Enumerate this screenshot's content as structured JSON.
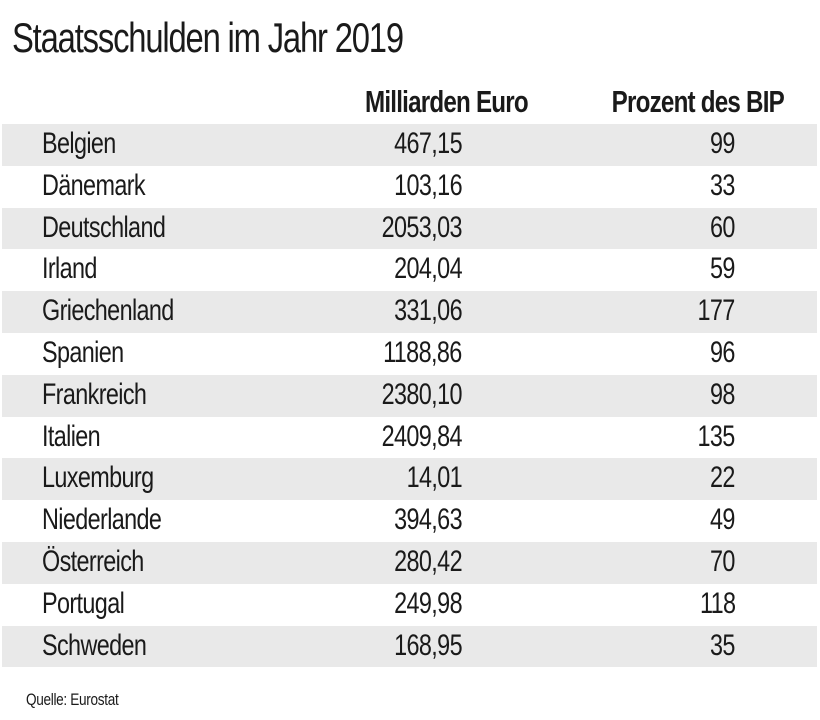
{
  "chart_data": {
    "type": "table",
    "title": "Staatsschulden im Jahr 2019",
    "columns": [
      "Milliarden Euro",
      "Prozent des BIP"
    ],
    "rows": [
      {
        "country": "Belgien",
        "euro": "467,15",
        "bip": "99"
      },
      {
        "country": "Dänemark",
        "euro": "103,16",
        "bip": "33"
      },
      {
        "country": "Deutschland",
        "euro": "2053,03",
        "bip": "60"
      },
      {
        "country": "Irland",
        "euro": "204,04",
        "bip": "59"
      },
      {
        "country": "Griechenland",
        "euro": "331,06",
        "bip": "177"
      },
      {
        "country": "Spanien",
        "euro": "1188,86",
        "bip": "96"
      },
      {
        "country": "Frankreich",
        "euro": "2380,10",
        "bip": "98"
      },
      {
        "country": "Italien",
        "euro": "2409,84",
        "bip": "135"
      },
      {
        "country": "Luxemburg",
        "euro": "14,01",
        "bip": "22"
      },
      {
        "country": "Niederlande",
        "euro": "394,63",
        "bip": "49"
      },
      {
        "country": "Österreich",
        "euro": "280,42",
        "bip": "70"
      },
      {
        "country": "Portugal",
        "euro": "249,98",
        "bip": "118"
      },
      {
        "country": "Schweden",
        "euro": "168,95",
        "bip": "35"
      }
    ],
    "source": "Quelle: Eurostat"
  },
  "colors": {
    "row_shade": "#e9e9e9",
    "text": "#1a1a1a"
  }
}
